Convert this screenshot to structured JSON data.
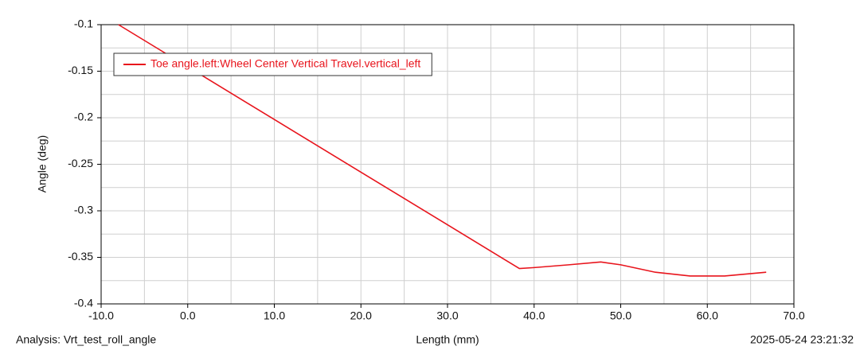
{
  "chart_data": {
    "type": "line",
    "xlabel": "Length (mm)",
    "ylabel": "Angle (deg)",
    "analysis": "Analysis:  Vrt_test_roll_angle",
    "timestamp": "2025-05-24 23:21:32",
    "x": [
      -8,
      0,
      10,
      20,
      30,
      38.3,
      40,
      44,
      47.7,
      50,
      54,
      58,
      62,
      66.8
    ],
    "series": [
      {
        "name": "Toe angle.left:Wheel Center Vertical Travel.vertical_left",
        "color": "#e8141c",
        "values": [
          -0.1,
          -0.1453,
          -0.2019,
          -0.2585,
          -0.315,
          -0.362,
          -0.361,
          -0.358,
          -0.355,
          -0.358,
          -0.366,
          -0.37,
          -0.37,
          -0.366
        ]
      }
    ],
    "xlim": [
      -10,
      70
    ],
    "ylim": [
      -0.4,
      -0.1
    ],
    "xticks": [
      {
        "value": -10,
        "label": "-10.0"
      },
      {
        "value": 0,
        "label": "0.0"
      },
      {
        "value": 10,
        "label": "10.0"
      },
      {
        "value": 20,
        "label": "20.0"
      },
      {
        "value": 30,
        "label": "30.0"
      },
      {
        "value": 40,
        "label": "40.0"
      },
      {
        "value": 50,
        "label": "50.0"
      },
      {
        "value": 60,
        "label": "60.0"
      },
      {
        "value": 70,
        "label": "70.0"
      }
    ],
    "yticks": [
      -0.1,
      -0.15,
      -0.2,
      -0.25,
      -0.3,
      -0.35,
      -0.4
    ],
    "x_minor_ticks": [
      -5,
      5,
      15,
      25,
      35,
      45,
      55,
      65
    ],
    "y_minor_ticks": [
      -0.125,
      -0.175,
      -0.225,
      -0.275,
      -0.325,
      -0.375
    ],
    "grid": true,
    "legend": "upper left"
  }
}
